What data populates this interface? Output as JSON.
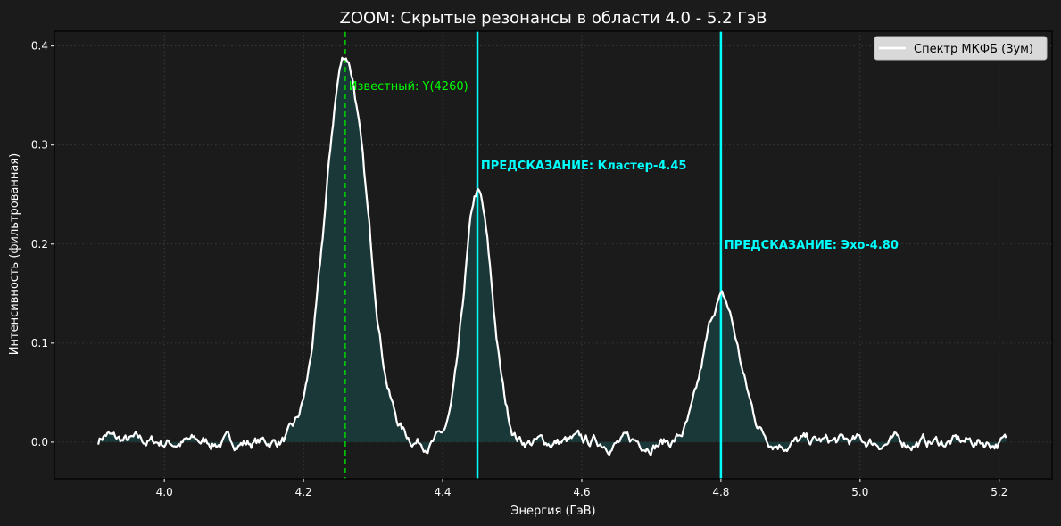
{
  "chart_data": {
    "type": "line",
    "title": "ZOOM: Скрытые резонансы в области 4.0 - 5.2 ГэВ",
    "xlabel": "Энергия (ГэВ)",
    "ylabel": "Интенсивность (фильтрованная)",
    "xlim": [
      3.842,
      5.276
    ],
    "ylim": [
      -0.037,
      0.415
    ],
    "xticks": [
      4.0,
      4.2,
      4.4,
      4.6,
      4.8,
      5.0,
      5.2
    ],
    "xtick_labels": [
      "4.0",
      "4.2",
      "4.4",
      "4.6",
      "4.8",
      "5.0",
      "5.2"
    ],
    "yticks": [
      0.0,
      0.1,
      0.2,
      0.3,
      0.4
    ],
    "ytick_labels": [
      "0.0",
      "0.1",
      "0.2",
      "0.3",
      "0.4"
    ],
    "grid": true,
    "legend_position": "upper right",
    "series": [
      {
        "name": "Спектр МКФБ (Зум)",
        "color": "#ffffff",
        "fill_color": "#1a3a3a",
        "x_range": [
          3.905,
          5.21
        ],
        "peaks": [
          {
            "center": 4.26,
            "height": 0.39,
            "sigma": 0.03
          },
          {
            "center": 4.45,
            "height": 0.25,
            "sigma": 0.02
          },
          {
            "center": 4.8,
            "height": 0.145,
            "sigma": 0.025
          }
        ],
        "noise_amplitude": 0.008,
        "sample_points": [
          {
            "x": 3.91,
            "y": 0.0
          },
          {
            "x": 4.0,
            "y": 0.005
          },
          {
            "x": 4.1,
            "y": 0.003
          },
          {
            "x": 4.2,
            "y": 0.07
          },
          {
            "x": 4.26,
            "y": 0.39
          },
          {
            "x": 4.35,
            "y": 0.01
          },
          {
            "x": 4.4,
            "y": 0.0
          },
          {
            "x": 4.45,
            "y": 0.25
          },
          {
            "x": 4.5,
            "y": 0.01
          },
          {
            "x": 4.6,
            "y": 0.0
          },
          {
            "x": 4.75,
            "y": 0.05
          },
          {
            "x": 4.8,
            "y": 0.145
          },
          {
            "x": 4.85,
            "y": 0.01
          },
          {
            "x": 5.0,
            "y": 0.0
          },
          {
            "x": 5.21,
            "y": 0.015
          }
        ]
      }
    ],
    "vlines": [
      {
        "x": 4.26,
        "color": "#00cc00",
        "style": "dashed",
        "label": "Известный: Y(4260)"
      },
      {
        "x": 4.45,
        "color": "#00ffff",
        "style": "solid",
        "label": "ПРЕДСКАЗАНИЕ: Кластер-4.45"
      },
      {
        "x": 4.8,
        "color": "#00ffff",
        "style": "solid",
        "label": "ПРЕДСКАЗАНИЕ: Эхо-4.80"
      }
    ],
    "annotations": [
      {
        "text": "Известный: Y(4260)",
        "x": 4.265,
        "y": 0.36,
        "color": "#00ff00"
      },
      {
        "text": "ПРЕДСКАЗАНИЕ: Кластер-4.45",
        "x": 4.455,
        "y": 0.28,
        "color": "#00ffff"
      },
      {
        "text": "ПРЕДСКАЗАНИЕ: Эхо-4.80",
        "x": 4.805,
        "y": 0.2,
        "color": "#00ffff"
      }
    ]
  },
  "colors": {
    "background": "#1b1b1b",
    "grid": "#444444",
    "known_line": "#00cc00",
    "prediction_line": "#00ffff",
    "curve": "#ffffff"
  }
}
